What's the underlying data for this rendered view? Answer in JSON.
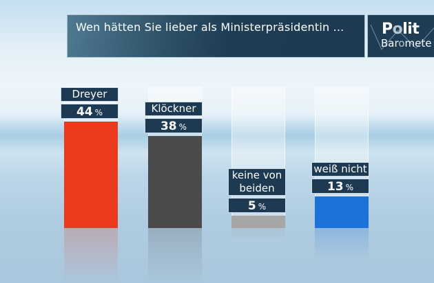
{
  "header": {
    "title": "Wen hätten Sie lieber als Ministerpräsidentin ...",
    "logo": {
      "line1_a": "P",
      "line1_b": "o",
      "line1_c": "lit",
      "line2_a": "Bar",
      "line2_b": "o",
      "line2_c": "mete"
    }
  },
  "colors": {
    "Dreyer": "#ec3a1f",
    "Klöckner": "#4b4b4b",
    "keine von beiden": "#a6a6a6",
    "weiß nicht": "#1b72d8",
    "label_bg": "#1d3a52"
  },
  "chart_data": {
    "type": "bar",
    "title": "Wen hätten Sie lieber als Ministerpräsidentin ...",
    "categories": [
      "Dreyer",
      "Klöckner",
      "keine von beiden",
      "weiß nicht"
    ],
    "category_lines": [
      [
        "Dreyer"
      ],
      [
        "Klöckner"
      ],
      [
        "keine von",
        "beiden"
      ],
      [
        "weiß nicht"
      ]
    ],
    "values": [
      44,
      38,
      5,
      13
    ],
    "unit": "%",
    "colors": [
      "#ec3a1f",
      "#4b4b4b",
      "#a6a6a6",
      "#1b72d8"
    ],
    "ylim": [
      0,
      50
    ],
    "xlabel": "",
    "ylabel": "",
    "grid": false,
    "legend": "none"
  }
}
